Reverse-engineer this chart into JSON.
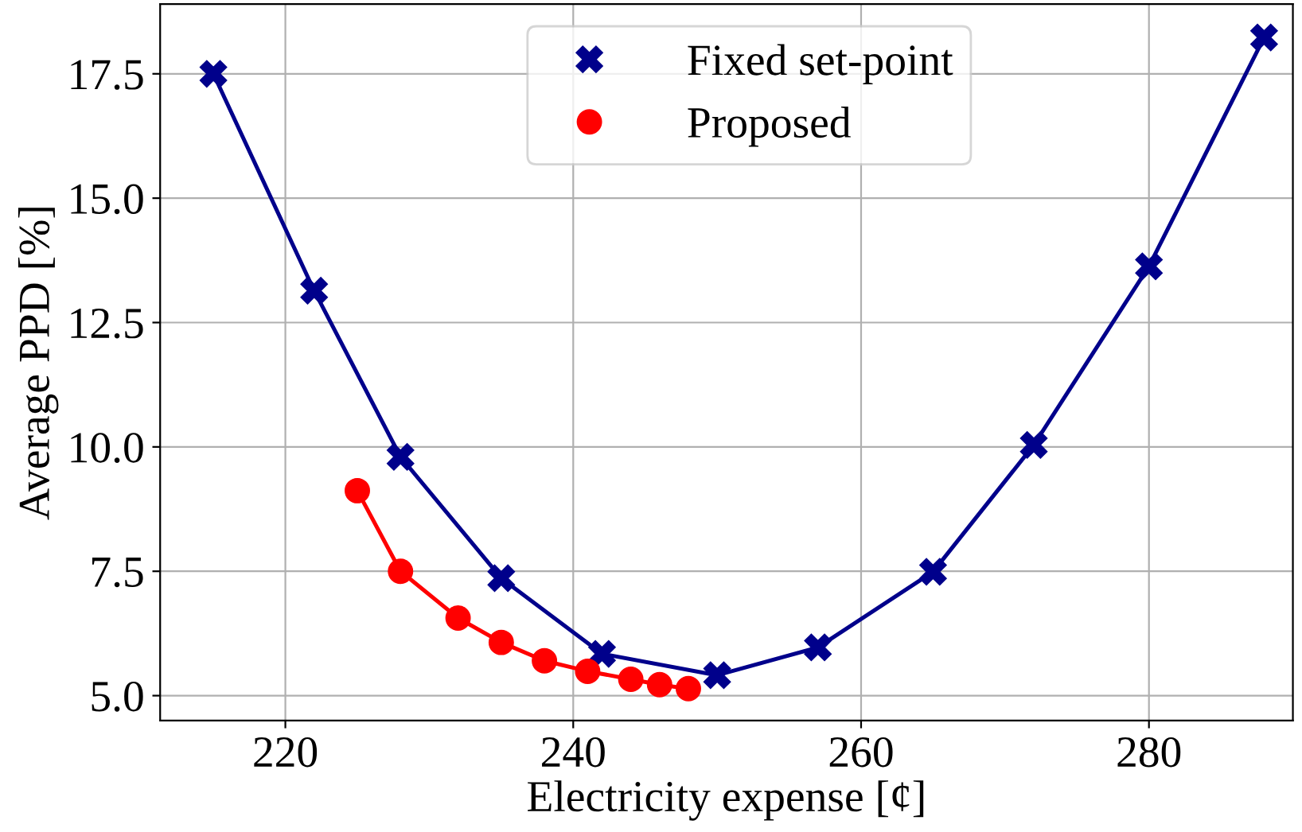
{
  "chart_data": {
    "type": "line",
    "xlabel": "Electricity expense [¢]",
    "ylabel": "Average PPD [%]",
    "xlim": [
      211.3,
      290
    ],
    "xticks": [
      220,
      240,
      260,
      280
    ],
    "ylim": [
      4.5,
      18.9
    ],
    "yticks": [
      {
        "value": 5,
        "label": "5.0"
      },
      {
        "value": 7.5,
        "label": "7.5"
      },
      {
        "value": 10,
        "label": "10.0"
      },
      {
        "value": 12.5,
        "label": "12.5"
      },
      {
        "value": 15,
        "label": "15.0"
      },
      {
        "value": 17.5,
        "label": "17.5"
      }
    ],
    "grid": true,
    "legend": "top",
    "series": [
      {
        "name": "Fixed set-point",
        "color": "#00008b",
        "marker": "cross",
        "x": [
          215,
          222,
          228,
          235,
          242,
          250,
          257,
          265,
          272,
          280,
          288
        ],
        "values": [
          17.5,
          13.14,
          9.8,
          7.36,
          5.84,
          5.41,
          5.97,
          7.49,
          10.04,
          13.63,
          18.23
        ]
      },
      {
        "name": "Proposed",
        "color": "#ff0000",
        "marker": "circle",
        "x": [
          225,
          228,
          232,
          235,
          238,
          241,
          244,
          246,
          248
        ],
        "values": [
          9.12,
          7.5,
          6.56,
          6.07,
          5.7,
          5.49,
          5.33,
          5.22,
          5.14
        ]
      }
    ]
  }
}
